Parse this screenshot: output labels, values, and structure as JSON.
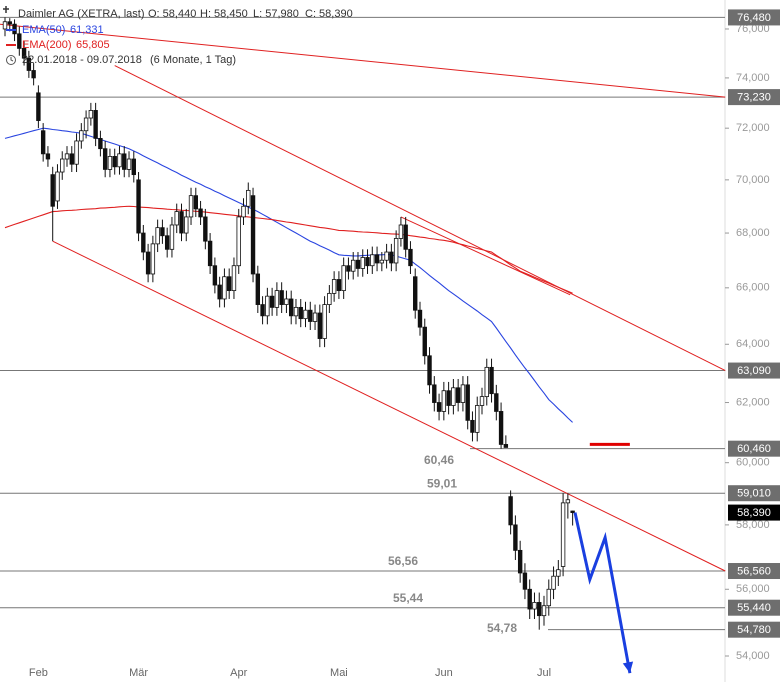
{
  "chart_data": {
    "type": "candlestick",
    "title": "Daimler AG (XETRA, last)",
    "ohlc_labels": [
      "O: 58,440",
      "H: 58,450",
      "L: 57,980",
      "C: 58,390"
    ],
    "range_label": "22.01.2018 - 09.07.2018",
    "period_label": "(6 Monate, 1 Tag)",
    "log_scale": true,
    "ylim": [
      53.24,
      77.21
    ],
    "yticks": [
      {
        "value": 54,
        "label": "54,000"
      },
      {
        "value": 56,
        "label": "56,000"
      },
      {
        "value": 58,
        "label": "58,000"
      },
      {
        "value": 60,
        "label": "60,000"
      },
      {
        "value": 62,
        "label": "62,000"
      },
      {
        "value": 64,
        "label": "64,000"
      },
      {
        "value": 66,
        "label": "66,000"
      },
      {
        "value": 68,
        "label": "68,000"
      },
      {
        "value": 70,
        "label": "70,000"
      },
      {
        "value": 72,
        "label": "72,000"
      },
      {
        "value": 74,
        "label": "74,000"
      },
      {
        "value": 76,
        "label": "76,000"
      }
    ],
    "categories": [
      null,
      null,
      null,
      null,
      null,
      null,
      null,
      "Feb",
      null,
      null,
      null,
      null,
      null,
      null,
      null,
      null,
      null,
      null,
      null,
      null,
      null,
      null,
      null,
      null,
      null,
      null,
      null,
      null,
      "Mär",
      null,
      null,
      null,
      null,
      null,
      null,
      null,
      null,
      null,
      null,
      null,
      null,
      null,
      null,
      null,
      null,
      null,
      null,
      null,
      null,
      "Apr",
      null,
      null,
      null,
      null,
      null,
      null,
      null,
      null,
      null,
      null,
      null,
      null,
      null,
      null,
      null,
      null,
      null,
      null,
      null,
      null,
      "Mai",
      null,
      null,
      null,
      null,
      null,
      null,
      null,
      null,
      null,
      null,
      null,
      null,
      null,
      null,
      null,
      null,
      null,
      null,
      null,
      null,
      null,
      "Jun",
      null,
      null,
      null,
      null,
      null,
      null,
      null,
      null,
      null,
      null,
      null,
      null,
      null,
      null,
      null,
      null,
      null,
      null,
      null,
      null,
      "Jul",
      null,
      null,
      null,
      null,
      null,
      null
    ],
    "open": [
      76.0,
      76.3,
      76.2,
      75.8,
      75.2,
      74.8,
      74.3,
      73.4,
      71.9,
      71.0,
      70.2,
      69.2,
      70.3,
      70.8,
      71.0,
      70.6,
      71.5,
      71.9,
      72.4,
      72.7,
      71.6,
      71.2,
      70.4,
      70.9,
      70.5,
      71.0,
      70.4,
      70.8,
      70.0,
      68.0,
      67.3,
      66.5,
      67.6,
      68.2,
      67.9,
      67.4,
      68.3,
      68.8,
      68.0,
      68.6,
      69.4,
      68.9,
      68.6,
      67.7,
      66.8,
      66.1,
      65.6,
      66.4,
      65.9,
      66.8,
      68.6,
      69.0,
      69.4,
      66.5,
      65.4,
      65.0,
      65.7,
      65.3,
      65.9,
      65.4,
      65.6,
      65.0,
      65.3,
      64.9,
      65.2,
      64.8,
      65.1,
      64.2,
      65.4,
      65.8,
      66.3,
      65.9,
      66.8,
      66.6,
      67.0,
      66.7,
      67.1,
      66.8,
      67.2,
      66.9,
      67.0,
      67.3,
      66.9,
      67.8,
      68.3,
      67.4,
      66.4,
      65.2,
      64.6,
      63.6,
      62.6,
      62.0,
      61.7,
      62.4,
      61.9,
      62.5,
      62.0,
      62.6,
      61.4,
      61.0,
      61.9,
      62.2,
      63.2,
      62.3,
      61.7,
      60.6,
      58.9,
      58.0,
      57.2,
      56.5,
      56.0,
      55.4,
      55.6,
      55.2,
      55.5,
      56.0,
      56.4,
      56.7,
      58.7,
      58.44
    ],
    "high": [
      76.48,
      76.45,
      76.4,
      76.1,
      75.5,
      75.1,
      74.6,
      73.7,
      72.2,
      71.3,
      70.5,
      70.6,
      71.1,
      71.3,
      71.3,
      71.8,
      72.2,
      72.7,
      73.0,
      73.0,
      71.9,
      71.5,
      71.2,
      71.2,
      71.3,
      71.3,
      71.1,
      71.1,
      70.3,
      68.3,
      67.6,
      67.9,
      68.5,
      68.5,
      68.2,
      68.6,
      69.1,
      69.1,
      68.9,
      69.7,
      69.7,
      69.2,
      68.9,
      68.0,
      67.1,
      66.4,
      66.7,
      66.7,
      67.1,
      68.9,
      69.3,
      69.9,
      69.7,
      66.8,
      65.7,
      66.0,
      66.0,
      66.2,
      66.2,
      65.9,
      65.9,
      65.6,
      65.6,
      65.5,
      65.5,
      65.4,
      65.4,
      65.7,
      66.1,
      66.6,
      66.6,
      67.1,
      67.1,
      67.3,
      67.3,
      67.4,
      67.4,
      67.5,
      67.5,
      67.3,
      67.6,
      67.6,
      68.1,
      68.6,
      68.6,
      67.7,
      66.7,
      65.5,
      64.9,
      63.9,
      62.9,
      62.3,
      62.7,
      62.7,
      62.8,
      62.8,
      62.9,
      62.9,
      61.7,
      62.2,
      62.5,
      63.5,
      63.5,
      62.6,
      62.0,
      60.9,
      59.1,
      58.3,
      57.5,
      56.8,
      56.3,
      55.9,
      55.9,
      55.8,
      56.3,
      56.7,
      56.9,
      59.01,
      59.0,
      58.45
    ],
    "low": [
      75.7,
      75.9,
      75.5,
      74.9,
      74.5,
      74.0,
      73.7,
      72.0,
      70.7,
      70.5,
      67.7,
      68.9,
      70.0,
      70.5,
      70.3,
      70.3,
      71.2,
      71.6,
      72.1,
      71.3,
      70.9,
      70.1,
      70.1,
      70.2,
      70.2,
      70.1,
      70.1,
      69.9,
      67.7,
      67.0,
      66.2,
      66.2,
      67.3,
      67.6,
      67.1,
      67.1,
      68.0,
      67.7,
      67.7,
      68.3,
      68.6,
      68.3,
      67.4,
      66.5,
      65.8,
      65.3,
      65.3,
      65.6,
      65.6,
      66.5,
      68.3,
      68.7,
      66.2,
      65.1,
      64.7,
      64.7,
      65.0,
      65.0,
      65.1,
      65.1,
      64.7,
      64.7,
      64.6,
      64.6,
      64.5,
      64.5,
      63.9,
      63.9,
      65.1,
      65.5,
      65.6,
      65.6,
      66.3,
      66.3,
      66.4,
      66.4,
      66.5,
      66.5,
      66.6,
      66.6,
      66.7,
      66.6,
      66.6,
      67.5,
      67.1,
      66.5,
      64.9,
      64.3,
      63.3,
      62.3,
      61.7,
      61.4,
      61.4,
      61.6,
      61.6,
      61.7,
      61.7,
      61.1,
      60.7,
      60.7,
      61.6,
      61.9,
      62.0,
      61.4,
      60.46,
      60.5,
      57.7,
      56.9,
      56.2,
      55.7,
      55.1,
      55.1,
      54.78,
      54.9,
      55.2,
      55.7,
      56.1,
      56.4,
      58.2,
      57.98
    ],
    "close": [
      76.3,
      76.2,
      75.8,
      75.2,
      74.8,
      74.3,
      74.0,
      72.3,
      71.0,
      70.8,
      69.0,
      70.3,
      70.8,
      71.0,
      70.6,
      71.5,
      71.9,
      72.4,
      72.7,
      71.6,
      71.2,
      70.4,
      70.9,
      70.5,
      71.0,
      70.4,
      70.8,
      70.2,
      68.0,
      67.3,
      66.5,
      67.6,
      68.2,
      67.9,
      67.4,
      68.3,
      68.8,
      68.0,
      68.6,
      69.4,
      68.9,
      68.6,
      67.7,
      66.8,
      66.1,
      65.6,
      66.4,
      65.9,
      66.8,
      68.6,
      69.0,
      69.6,
      66.5,
      65.4,
      65.0,
      65.7,
      65.3,
      65.9,
      65.4,
      65.6,
      65.0,
      65.3,
      64.9,
      65.2,
      64.8,
      65.1,
      64.2,
      65.4,
      65.8,
      66.3,
      65.9,
      66.8,
      66.6,
      67.0,
      66.7,
      67.1,
      66.8,
      67.2,
      66.9,
      67.0,
      67.3,
      66.9,
      67.8,
      68.3,
      67.4,
      66.8,
      65.2,
      64.6,
      63.6,
      62.6,
      62.0,
      61.7,
      62.4,
      61.9,
      62.5,
      62.0,
      62.6,
      61.4,
      61.0,
      61.9,
      62.2,
      63.2,
      62.3,
      61.7,
      60.6,
      60.5,
      58.0,
      57.2,
      56.5,
      56.0,
      55.4,
      55.6,
      55.2,
      55.5,
      56.0,
      56.4,
      56.6,
      58.7,
      58.8,
      58.39
    ],
    "close_label": "58,390",
    "series": [
      {
        "name": "EMA(50)",
        "color": "#2a45e0",
        "last_label": "61,331",
        "values": [
          71.6,
          71.65,
          71.7,
          71.75,
          71.8,
          71.85,
          71.9,
          71.95,
          72.0,
          71.98,
          71.95,
          71.93,
          71.9,
          71.88,
          71.85,
          71.83,
          71.8,
          71.74,
          71.68,
          71.62,
          71.56,
          71.5,
          71.44,
          71.38,
          71.32,
          71.26,
          71.2,
          71.11,
          71.02,
          70.92,
          70.83,
          70.74,
          70.65,
          70.55,
          70.46,
          70.37,
          70.28,
          70.18,
          70.09,
          70.0,
          69.91,
          69.83,
          69.74,
          69.66,
          69.57,
          69.49,
          69.4,
          69.31,
          69.23,
          69.14,
          69.06,
          68.97,
          68.89,
          68.8,
          68.7,
          68.6,
          68.5,
          68.4,
          68.3,
          68.2,
          68.1,
          68.0,
          67.9,
          67.8,
          67.7,
          67.62,
          67.53,
          67.45,
          67.37,
          67.28,
          67.2,
          67.18,
          67.17,
          67.16,
          67.16,
          67.17,
          67.18,
          67.19,
          67.2,
          67.2,
          67.21,
          67.2,
          67.15,
          67.1,
          67.05,
          67.0,
          66.86,
          66.73,
          66.59,
          66.45,
          66.31,
          66.18,
          66.04,
          65.9,
          65.78,
          65.66,
          65.53,
          65.41,
          65.29,
          65.17,
          65.04,
          64.92,
          64.8,
          64.57,
          64.33,
          64.1,
          63.87,
          63.63,
          63.4,
          63.18,
          62.97,
          62.75,
          62.53,
          62.32,
          62.1,
          61.95,
          61.79,
          61.64,
          61.48,
          61.331
        ]
      },
      {
        "name": "EMA(200)",
        "color": "#e02020",
        "last_label": "65,805",
        "values": [
          68.2,
          68.26,
          68.32,
          68.38,
          68.44,
          68.5,
          68.56,
          68.62,
          68.68,
          68.74,
          68.8,
          68.81,
          68.83,
          68.84,
          68.85,
          68.86,
          68.88,
          68.89,
          68.9,
          68.91,
          68.93,
          68.94,
          68.95,
          68.96,
          68.98,
          68.99,
          69.0,
          68.99,
          68.97,
          68.96,
          68.95,
          68.93,
          68.92,
          68.91,
          68.89,
          68.88,
          68.87,
          68.85,
          68.84,
          68.83,
          68.81,
          68.8,
          68.78,
          68.76,
          68.74,
          68.72,
          68.7,
          68.68,
          68.66,
          68.64,
          68.62,
          68.6,
          68.58,
          68.56,
          68.54,
          68.52,
          68.5,
          68.47,
          68.44,
          68.41,
          68.39,
          68.36,
          68.33,
          68.3,
          68.27,
          68.24,
          68.21,
          68.19,
          68.16,
          68.13,
          68.1,
          68.09,
          68.08,
          68.07,
          68.05,
          68.04,
          68.03,
          68.02,
          68.01,
          67.99,
          67.98,
          67.97,
          67.96,
          67.95,
          67.93,
          67.9,
          67.88,
          67.85,
          67.83,
          67.8,
          67.78,
          67.75,
          67.73,
          67.7,
          67.66,
          67.61,
          67.57,
          67.52,
          67.48,
          67.43,
          67.39,
          67.34,
          67.3,
          67.18,
          67.07,
          66.95,
          66.83,
          66.72,
          66.6,
          66.53,
          66.46,
          66.38,
          66.31,
          66.24,
          66.17,
          66.09,
          66.02,
          65.95,
          65.88,
          65.805
        ]
      }
    ],
    "levels": [
      {
        "value": 76.48,
        "label": "76,480"
      },
      {
        "value": 73.23,
        "label": "73,230"
      },
      {
        "value": 63.09,
        "label": "63,090"
      },
      {
        "value": 60.46,
        "label": "60,460",
        "note": "60,46"
      },
      {
        "value": 59.01,
        "label": "59,010",
        "note": "59,01"
      },
      {
        "value": 56.56,
        "label": "56,560",
        "note": "56,56"
      },
      {
        "value": 55.44,
        "label": "55,440",
        "note": "55,44"
      },
      {
        "value": 54.78,
        "label": "54,780",
        "note": "54,78"
      }
    ],
    "trendlines": [
      {
        "color": "#e02020",
        "points": [
          [
            -1.05,
            76.2
          ],
          [
            151,
            73.23
          ]
        ]
      },
      {
        "color": "#e02020",
        "points": [
          [
            23,
            74.5
          ],
          [
            151,
            63.09
          ]
        ]
      },
      {
        "color": "#e02020",
        "points": [
          [
            10,
            67.7
          ],
          [
            151,
            56.56
          ]
        ]
      },
      {
        "color": "#e02020",
        "points": [
          [
            83,
            68.6
          ],
          [
            118.5,
            65.75
          ]
        ]
      }
    ],
    "target": {
      "color": "#e00000",
      "value": 60.6,
      "x": [
        122.6,
        131
      ]
    },
    "projection": {
      "color": "#1a3fe0",
      "points": [
        [
          119.5,
          58.39
        ],
        [
          122.6,
          56.3
        ],
        [
          125.8,
          57.6
        ],
        [
          131,
          53.5
        ]
      ]
    }
  }
}
